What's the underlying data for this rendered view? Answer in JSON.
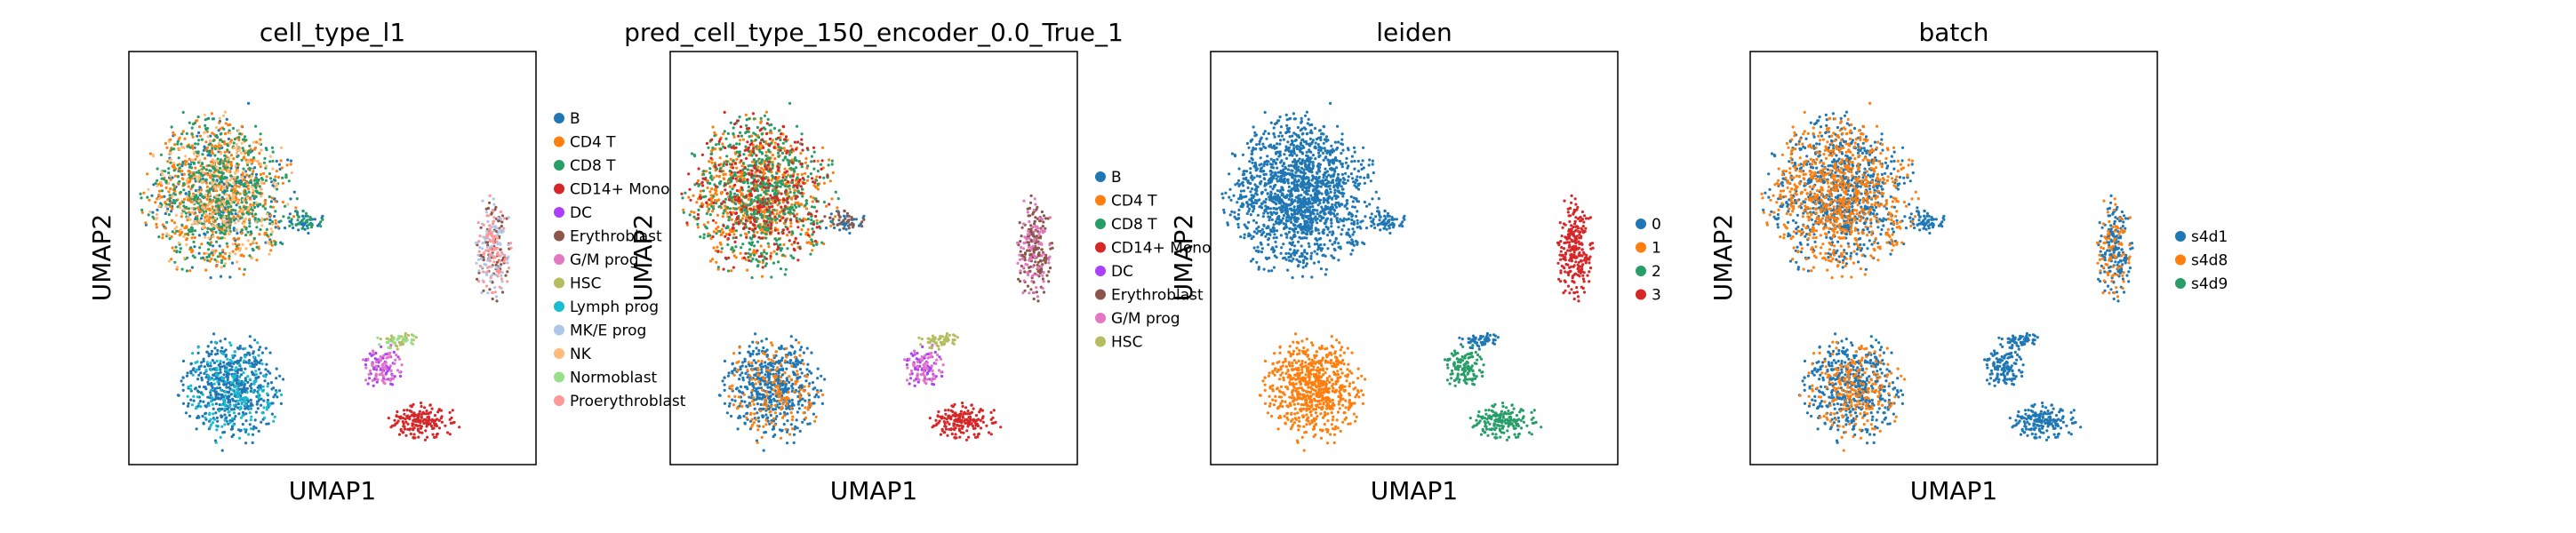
{
  "chart_data": [
    {
      "type": "scatter",
      "title": "cell_type_l1",
      "xlabel": "UMAP1",
      "ylabel": "UMAP2",
      "grid": false,
      "legend": "right",
      "series": [
        {
          "name": "B",
          "color": "#1f77b4"
        },
        {
          "name": "CD4 T",
          "color": "#ff7f0e"
        },
        {
          "name": "CD8 T",
          "color": "#279e68"
        },
        {
          "name": "CD14+ Mono",
          "color": "#d62728"
        },
        {
          "name": "DC",
          "color": "#aa40fc"
        },
        {
          "name": "Erythroblast",
          "color": "#8c564b"
        },
        {
          "name": "G/M prog",
          "color": "#e377c2"
        },
        {
          "name": "HSC",
          "color": "#b5bd61"
        },
        {
          "name": "Lymph prog",
          "color": "#17becf"
        },
        {
          "name": "MK/E prog",
          "color": "#aec7e8"
        },
        {
          "name": "NK",
          "color": "#ffbb78"
        },
        {
          "name": "Normoblast",
          "color": "#98df8a"
        },
        {
          "name": "Proerythroblast",
          "color": "#ff9896"
        }
      ]
    },
    {
      "type": "scatter",
      "title": "pred_cell_type_150_encoder_0.0_True_1",
      "xlabel": "UMAP1",
      "ylabel": "UMAP2",
      "grid": false,
      "legend": "right",
      "series": [
        {
          "name": "B",
          "color": "#1f77b4"
        },
        {
          "name": "CD4 T",
          "color": "#ff7f0e"
        },
        {
          "name": "CD8 T",
          "color": "#279e68"
        },
        {
          "name": "CD14+ Mono",
          "color": "#d62728"
        },
        {
          "name": "DC",
          "color": "#aa40fc"
        },
        {
          "name": "Erythroblast",
          "color": "#8c564b"
        },
        {
          "name": "G/M prog",
          "color": "#e377c2"
        },
        {
          "name": "HSC",
          "color": "#b5bd61"
        }
      ]
    },
    {
      "type": "scatter",
      "title": "leiden",
      "xlabel": "UMAP1",
      "ylabel": "UMAP2",
      "grid": false,
      "legend": "right",
      "series": [
        {
          "name": "0",
          "color": "#1f77b4"
        },
        {
          "name": "1",
          "color": "#ff7f0e"
        },
        {
          "name": "2",
          "color": "#279e68"
        },
        {
          "name": "3",
          "color": "#d62728"
        }
      ]
    },
    {
      "type": "scatter",
      "title": "batch",
      "xlabel": "UMAP1",
      "ylabel": "UMAP2",
      "grid": false,
      "legend": "right",
      "series": [
        {
          "name": "s4d1",
          "color": "#1f77b4"
        },
        {
          "name": "s4d8",
          "color": "#ff7f0e"
        },
        {
          "name": "s4d9",
          "color": "#279e68"
        }
      ]
    }
  ]
}
